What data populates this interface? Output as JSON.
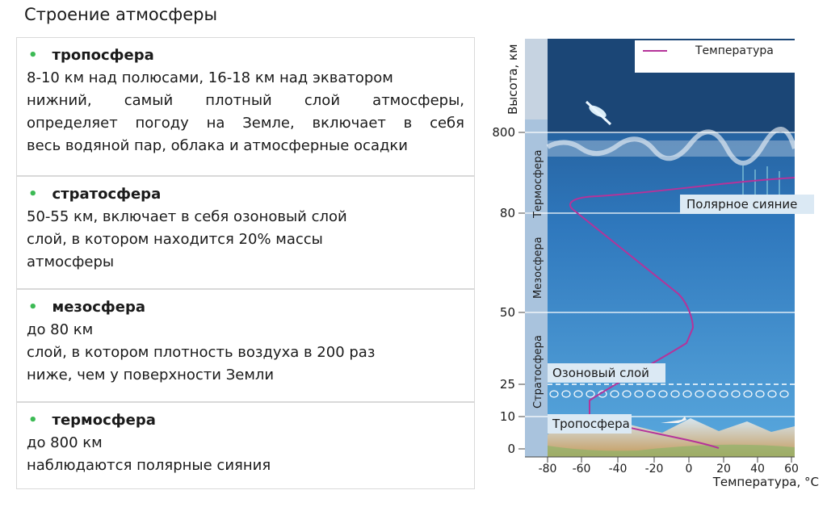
{
  "title": "Строение атмосферы",
  "layers": [
    {
      "name": "тропосфера",
      "lines": [
        "8-10 км над полюсами, 16-18 км над экватором",
        "нижний, самый плотный слой атмосферы,",
        "определяет погоду на Земле, включает в себя",
        "весь водяной пар, облака и атмосферные осадки"
      ]
    },
    {
      "name": "стратосфера",
      "lines": [
        "50-55 км, включает в себя озоновый слой",
        "слой, в котором находится 20% массы",
        "атмосферы"
      ]
    },
    {
      "name": "мезосфера",
      "lines": [
        "до 80 км",
        "слой, в котором плотность воздуха в 200 раз",
        "ниже, чем у поверхности Земли"
      ]
    },
    {
      "name": "термосфера",
      "lines": [
        "до 800 км",
        "наблюдаются полярные сияния"
      ]
    }
  ],
  "diagram": {
    "y_axis_label": "Высота, км",
    "x_axis_label": "Температура, °С",
    "legend_label": "Температура",
    "height_ticks": [
      "800",
      "80",
      "50",
      "25",
      "10",
      "0"
    ],
    "temp_ticks": [
      "-80",
      "-60",
      "-40",
      "-20",
      "0",
      "20",
      "40",
      "60"
    ],
    "zone_labels": [
      "Термосфера",
      "Мезосфера",
      "Стратосфера"
    ],
    "annotations": {
      "aurora": "Полярное сияние",
      "ozone": "Озоновый слой",
      "troposphere": "Тропосфера"
    },
    "colors": {
      "curve": "#b5339a",
      "sky_top": "#1d4f86",
      "sky_bottom": "#4ea0d9",
      "bullet": "#3cba54"
    }
  }
}
